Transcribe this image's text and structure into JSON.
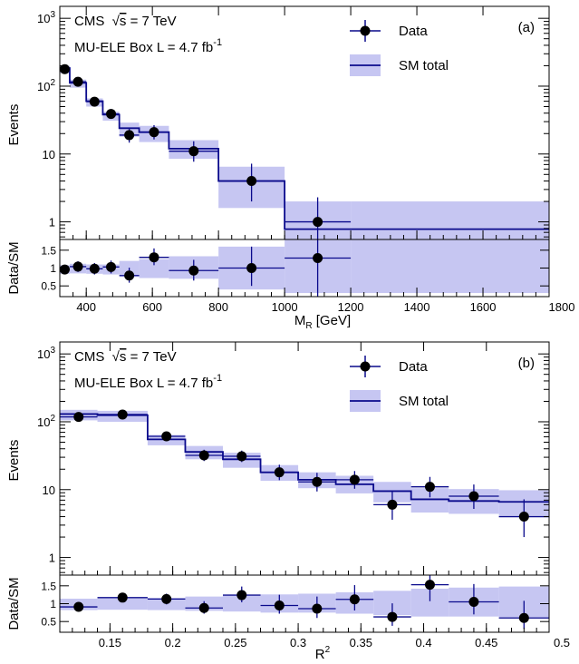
{
  "colors": {
    "sm_line": "#0a0a8c",
    "band": "#c6c6f2",
    "data_marker": "#000000",
    "data_err": "#0a0a8c"
  },
  "chart_data": [
    {
      "type": "line",
      "panel": "(a)",
      "experiment": "CMS",
      "energy_sqrt": "s",
      "energy_value": "= 7 TeV",
      "box_label": "MU-ELE Box L = 4.7 fb",
      "lumi_exp": "-1",
      "legend": {
        "data_label": "Data",
        "sm_label": "SM total",
        "position": "top-right"
      },
      "xlabel_main": "M",
      "xlabel_sub": "R",
      "xlabel_unit": "[GeV]",
      "ylabel": "Events",
      "ratio_ylabel": "Data/SM",
      "ylog": true,
      "ylim": [
        0.55,
        1500
      ],
      "xlim": [
        320,
        1800
      ],
      "ratio_ylim": [
        0.2,
        1.8
      ],
      "xticks": [
        "400",
        "600",
        "800",
        "1000",
        "1200",
        "1400",
        "1600",
        "1800"
      ],
      "yticks": [
        {
          "v": 1,
          "base": "1",
          "exp": ""
        },
        {
          "v": 10,
          "base": "10",
          "exp": ""
        },
        {
          "v": 100,
          "base": "10",
          "exp": "2"
        },
        {
          "v": 1000,
          "base": "10",
          "exp": "3"
        }
      ],
      "ratio_yticks": [
        "0.5",
        "1",
        "1.5"
      ],
      "bins": [
        320,
        350,
        400,
        450,
        500,
        560,
        650,
        800,
        1000,
        1200,
        1800
      ],
      "sm_total": [
        185,
        112,
        60,
        38,
        24,
        21,
        12,
        4.0,
        0.78,
        0.78
      ],
      "sm_band_lo": [
        155,
        95,
        50,
        31,
        18,
        15,
        8.5,
        1.6,
        0.45,
        0.45
      ],
      "sm_band_hi": [
        200,
        125,
        66,
        42,
        29,
        26,
        16,
        6.5,
        2.0,
        2.0
      ],
      "data_x": [
        335,
        375,
        425,
        475,
        530,
        605,
        725,
        900,
        1100
      ],
      "data_y": [
        178,
        116,
        59,
        39,
        19,
        21,
        11,
        4,
        1
      ],
      "data_err_lo": [
        13,
        11,
        8,
        6,
        4.3,
        4.6,
        3.3,
        2,
        0.6
      ],
      "data_err_hi": [
        14,
        12,
        9,
        7,
        5.4,
        5.6,
        4.4,
        3.2,
        1.3
      ],
      "ratio_values": [
        0.96,
        1.04,
        0.98,
        1.03,
        0.79,
        1.3,
        0.93,
        1.0,
        1.28
      ],
      "ratio_err_lo": [
        0.12,
        0.15,
        0.16,
        0.18,
        0.2,
        0.22,
        0.28,
        0.5,
        1.1
      ],
      "ratio_err_hi": [
        0.12,
        0.15,
        0.16,
        0.18,
        0.22,
        0.25,
        0.3,
        0.6,
        1.1
      ],
      "ratio_band_lo": [
        0.84,
        0.85,
        0.84,
        0.82,
        0.75,
        0.72,
        0.7,
        0.4,
        0.3,
        0.3
      ],
      "ratio_band_hi": [
        1.08,
        1.12,
        1.1,
        1.1,
        1.2,
        1.25,
        1.33,
        1.6,
        1.8,
        1.8
      ]
    },
    {
      "type": "line",
      "panel": "(b)",
      "experiment": "CMS",
      "energy_sqrt": "s",
      "energy_value": "= 7 TeV",
      "box_label": "MU-ELE Box L = 4.7 fb",
      "lumi_exp": "-1",
      "legend": {
        "data_label": "Data",
        "sm_label": "SM total",
        "position": "top-right"
      },
      "xlabel_main": "R",
      "xlabel_sup": "2",
      "ylabel": "Events",
      "ratio_ylabel": "Data/SM",
      "ylog": true,
      "ylim": [
        0.55,
        1500
      ],
      "xlim": [
        0.11,
        0.5
      ],
      "ratio_ylim": [
        0.2,
        1.8
      ],
      "xticks": [
        "0.15",
        "0.2",
        "0.25",
        "0.3",
        "0.35",
        "0.4",
        "0.45",
        "0.5"
      ],
      "yticks": [
        {
          "v": 1,
          "base": "1",
          "exp": ""
        },
        {
          "v": 10,
          "base": "10",
          "exp": ""
        },
        {
          "v": 100,
          "base": "10",
          "exp": "2"
        },
        {
          "v": 1000,
          "base": "10",
          "exp": "3"
        }
      ],
      "ratio_yticks": [
        "0.5",
        "1",
        "1.5"
      ],
      "bins": [
        0.11,
        0.14,
        0.18,
        0.21,
        0.24,
        0.27,
        0.3,
        0.33,
        0.36,
        0.39,
        0.42,
        0.46,
        0.5
      ],
      "sm_total": [
        130,
        125,
        55,
        36,
        28,
        18,
        14,
        12,
        9.5,
        7.2,
        6.8,
        6.6
      ],
      "sm_band_lo": [
        105,
        100,
        45,
        28,
        21,
        13.5,
        10.5,
        8.8,
        6.5,
        4.6,
        4.4,
        4.1
      ],
      "sm_band_hi": [
        150,
        145,
        64,
        44,
        35,
        23,
        18,
        16,
        13,
        10.5,
        10.2,
        9.8
      ],
      "data_x": [
        0.125,
        0.16,
        0.195,
        0.225,
        0.255,
        0.285,
        0.315,
        0.345,
        0.375,
        0.405,
        0.44,
        0.48
      ],
      "data_y": [
        118,
        128,
        61,
        32,
        31,
        18,
        13,
        14,
        6,
        11,
        8,
        4
      ],
      "data_err_lo": [
        11,
        11,
        8,
        5.6,
        5.5,
        4.2,
        3.6,
        3.7,
        2.4,
        3.3,
        2.8,
        2
      ],
      "data_err_hi": [
        12,
        12,
        9,
        6.7,
        6.6,
        5.3,
        4.7,
        4.8,
        3.6,
        4.4,
        3.9,
        3.2
      ],
      "ratio_values": [
        0.91,
        1.17,
        1.13,
        0.88,
        1.24,
        0.95,
        0.86,
        1.12,
        0.63,
        1.53,
        1.05,
        0.6
      ],
      "ratio_err_lo": [
        0.1,
        0.1,
        0.15,
        0.16,
        0.2,
        0.23,
        0.26,
        0.31,
        0.25,
        0.46,
        0.35,
        0.3
      ],
      "ratio_err_hi": [
        0.1,
        0.1,
        0.15,
        0.19,
        0.24,
        0.3,
        0.34,
        0.4,
        0.38,
        0.6,
        0.5,
        0.48
      ],
      "ratio_band_lo": [
        0.82,
        0.83,
        0.82,
        0.8,
        0.78,
        0.75,
        0.75,
        0.72,
        0.68,
        0.64,
        0.64,
        0.6
      ],
      "ratio_band_hi": [
        1.14,
        1.15,
        1.16,
        1.2,
        1.22,
        1.26,
        1.28,
        1.32,
        1.36,
        1.42,
        1.45,
        1.48
      ]
    }
  ]
}
